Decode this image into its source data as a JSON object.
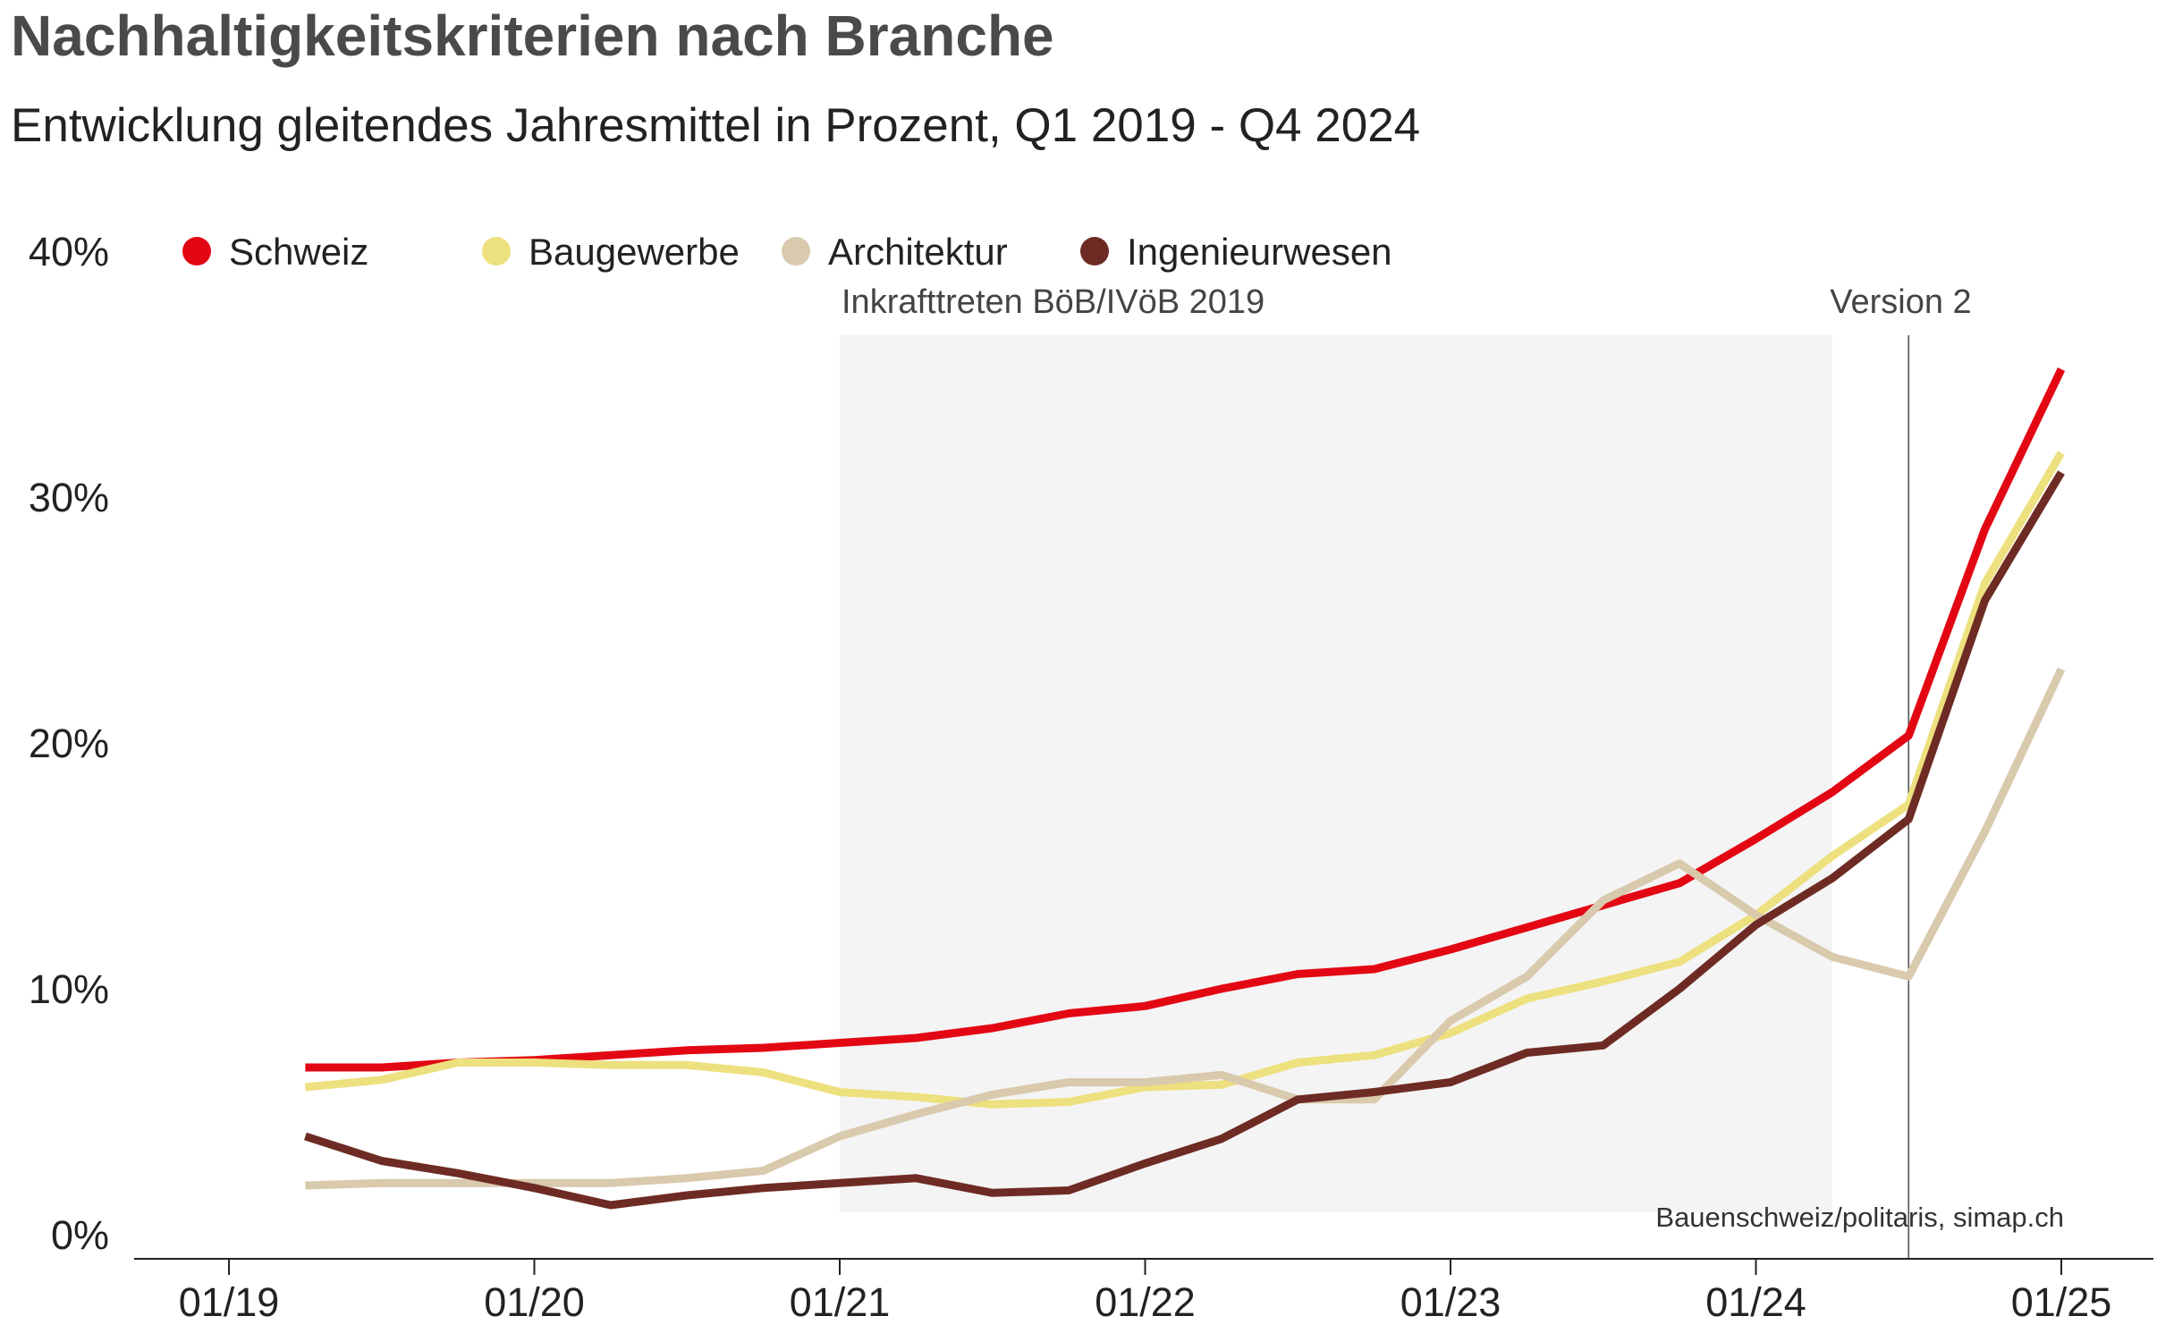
{
  "chart_data": {
    "type": "line",
    "title": "Nachhaltigkeitskriterien nach Branche",
    "subtitle": "Entwicklung gleitendes Jahresmittel in Prozent, Q1 2019 - Q4 2024",
    "source": "Bauenschweiz/politaris, simap.ch",
    "y_ticks": [
      "0%",
      "10%",
      "20%",
      "30%",
      "40%"
    ],
    "ylim": [
      0,
      40
    ],
    "x_ticks": [
      "01/19",
      "01/20",
      "01/21",
      "01/22",
      "01/23",
      "01/24",
      "01/25"
    ],
    "xlim": [
      "2019-01",
      "2025-03"
    ],
    "x": [
      "2019-04",
      "2019-07",
      "2019-10",
      "2020-01",
      "2020-04",
      "2020-07",
      "2020-10",
      "2021-01",
      "2021-04",
      "2021-07",
      "2021-10",
      "2022-01",
      "2022-04",
      "2022-07",
      "2022-10",
      "2023-01",
      "2023-04",
      "2023-07",
      "2023-10",
      "2024-01",
      "2024-04",
      "2024-07",
      "2024-10",
      "2025-01"
    ],
    "series": [
      {
        "name": "Schweiz",
        "color": "#e30613",
        "values": [
          6.8,
          6.8,
          7.0,
          7.1,
          7.3,
          7.5,
          7.6,
          7.8,
          8.0,
          8.4,
          9.0,
          9.3,
          10.0,
          10.6,
          10.8,
          11.6,
          12.5,
          13.4,
          14.3,
          16.1,
          18.0,
          20.3,
          28.7,
          35.2
        ]
      },
      {
        "name": "Baugewerbe",
        "color": "#ede07e",
        "values": [
          6.0,
          6.3,
          7.0,
          7.0,
          6.9,
          6.9,
          6.6,
          5.8,
          5.6,
          5.3,
          5.4,
          6.0,
          6.1,
          7.0,
          7.3,
          8.2,
          9.6,
          10.3,
          11.1,
          13.0,
          15.4,
          17.5,
          26.5,
          31.8
        ]
      },
      {
        "name": "Architektur",
        "color": "#d9c9ad",
        "values": [
          2.0,
          2.1,
          2.1,
          2.1,
          2.1,
          2.3,
          2.6,
          4.0,
          4.9,
          5.7,
          6.2,
          6.2,
          6.5,
          5.5,
          5.5,
          8.7,
          10.5,
          13.6,
          15.1,
          13.0,
          11.3,
          10.5,
          16.4,
          23.0
        ]
      },
      {
        "name": "Ingenieurwesen",
        "color": "#6e2b24",
        "values": [
          4.0,
          3.0,
          2.5,
          1.9,
          1.2,
          1.6,
          1.9,
          2.1,
          2.3,
          1.7,
          1.8,
          2.9,
          3.9,
          5.5,
          5.8,
          6.2,
          7.4,
          7.7,
          10.0,
          12.6,
          14.5,
          16.9,
          25.8,
          31.0
        ]
      }
    ],
    "shaded_period": {
      "label": "Inkrafttreten BöB/IVöB 2019",
      "from": "2021-01",
      "to": "2024-04"
    },
    "vline": {
      "label": "Version 2",
      "at": "2024-07"
    },
    "grid": false,
    "legend": "top-left"
  }
}
